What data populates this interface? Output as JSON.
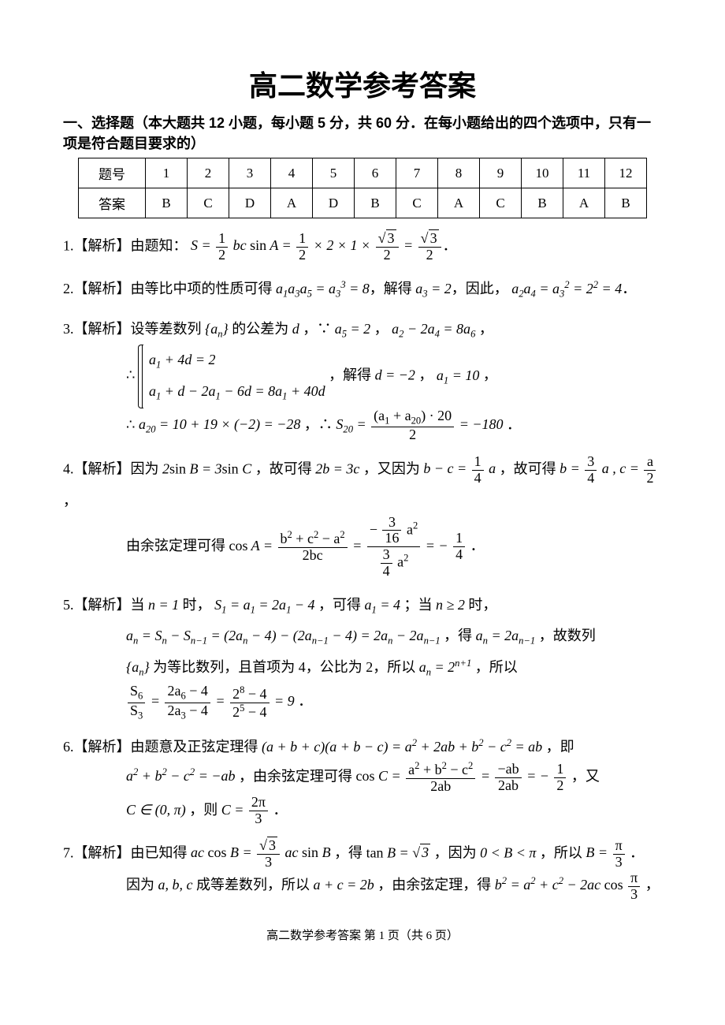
{
  "title": "高二数学参考答案",
  "section1_header": "一、选择题（本大题共 12 小题，每小题 5 分，共 60 分．在每小题给出的四个选项中，只有一项是符合题目要求的）",
  "answer_table": {
    "row_labels": [
      "题号",
      "答案"
    ],
    "columns": [
      "1",
      "2",
      "3",
      "4",
      "5",
      "6",
      "7",
      "8",
      "9",
      "10",
      "11",
      "12"
    ],
    "answers": [
      "B",
      "C",
      "D",
      "A",
      "D",
      "B",
      "C",
      "A",
      "C",
      "B",
      "A",
      "B"
    ]
  },
  "problems": {
    "p1": {
      "label": "1.【解析】由题知：",
      "tail": "．"
    },
    "p2": {
      "label": "2.【解析】由等比中项的性质可得 ",
      "mid1": "，解得 ",
      "mid2": "，因此，",
      "tail": "．"
    },
    "p3": {
      "label": "3.【解析】设等差数列",
      "mid1": "的公差为 ",
      "mid2": "，∵",
      "mid3": "，",
      "tail_line1": "，",
      "line2a": "∴",
      "line2b": "，解得 ",
      "line2c": "，",
      "line2d": "，",
      "line3a": "∴",
      "line3b": "，∴",
      "line3c": "．"
    },
    "p4": {
      "label": "4.【解析】因为",
      "mid1": "，故可得",
      "mid2": "，又因为",
      "mid3": "，故可得",
      "mid4": "，",
      "line2a": "由余弦定理可得",
      "line2b": "．"
    },
    "p5": {
      "label": "5.【解析】当",
      "mid1": "时，",
      "mid2": "，可得",
      "mid3": "；当",
      "mid4": "时，",
      "line2a": "",
      "line2b": "，得",
      "line2c": "，故数列",
      "line3a": "为等比数列，且首项为 4，公比为 2，所以",
      "line3b": "，所以",
      "line4a": "",
      "line4b": "．"
    },
    "p6": {
      "label": "6.【解析】由题意及正弦定理得",
      "mid1": "，即",
      "line2a": "",
      "line2b": "，由余弦定理可得",
      "line2c": "，又",
      "line3a": "",
      "line3b": "，则",
      "line3c": "．"
    },
    "p7": {
      "label": "7.【解析】由已知得",
      "mid1": "，得",
      "mid2": "，因为",
      "mid3": "，所以",
      "mid4": "．",
      "line2a": "因为",
      "line2b": "成等差数列，所以",
      "line2c": "，由余弦定理，得",
      "line2d": "，"
    }
  },
  "footer": "高二数学参考答案 第 1 页（共 6 页）"
}
